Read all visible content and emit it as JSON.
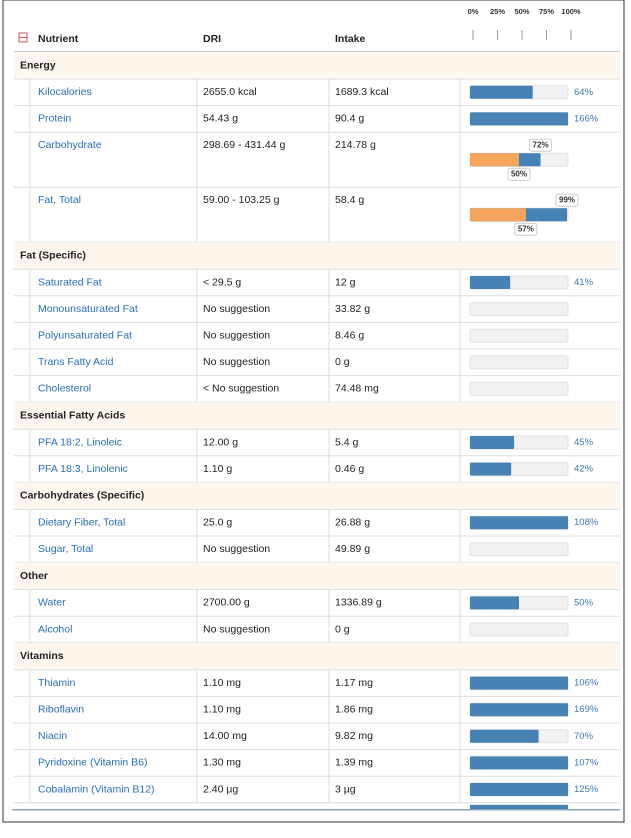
{
  "scale": [
    {
      "value": 0,
      "label": "0%"
    },
    {
      "value": 25,
      "label": "25%"
    },
    {
      "value": 50,
      "label": "50%"
    },
    {
      "value": 75,
      "label": "75%"
    },
    {
      "value": 100,
      "label": "100%"
    }
  ],
  "header": {
    "nutrient": "Nutrient",
    "dri": "DRI",
    "intake": "Intake"
  },
  "colors": [
    "#4682b4",
    "#f5a55c"
  ],
  "sections": [
    {
      "name": "Energy",
      "rows": [
        {
          "name": "Kilocalories",
          "dri": "2655.0 kcal",
          "intake": "1689.3 kcal",
          "bars": [
            {
              "value": 64,
              "label": "64%"
            }
          ]
        },
        {
          "name": "Protein",
          "dri": "54.43 g",
          "intake": "90.4 g",
          "bars": [
            {
              "value": 166,
              "label": "166%"
            }
          ]
        },
        {
          "name": "Carbohydrate",
          "dri": "298.69 - 431.44 g",
          "intake": "214.78 g",
          "bars": [
            {
              "value": 72,
              "label": "72%"
            },
            {
              "value": 50,
              "label": "50%"
            }
          ]
        },
        {
          "name": "Fat, Total",
          "dri": "59.00 - 103.25 g",
          "intake": "58.4 g",
          "bars": [
            {
              "value": 99,
              "label": "99%"
            },
            {
              "value": 57,
              "label": "57%"
            }
          ]
        }
      ]
    },
    {
      "name": "Fat (Specific)",
      "rows": [
        {
          "name": "Saturated Fat",
          "dri": "< 29.5 g",
          "intake": "12 g",
          "bars": [
            {
              "value": 41,
              "label": "41%"
            }
          ]
        },
        {
          "name": "Monounsaturated Fat",
          "dri": "No suggestion",
          "intake": "33.82 g",
          "bars": []
        },
        {
          "name": "Polyunsaturated Fat",
          "dri": "No suggestion",
          "intake": "8.46 g",
          "bars": []
        },
        {
          "name": "Trans Fatty Acid",
          "dri": "No suggestion",
          "intake": "0 g",
          "bars": []
        },
        {
          "name": "Cholesterol",
          "dri": "< No suggestion",
          "intake": "74.48 mg",
          "bars": []
        }
      ]
    },
    {
      "name": "Essential Fatty Acids",
      "rows": [
        {
          "name": "PFA 18:2, Linoleic",
          "dri": "12.00 g",
          "intake": "5.4 g",
          "bars": [
            {
              "value": 45,
              "label": "45%"
            }
          ]
        },
        {
          "name": "PFA 18:3, Linolenic",
          "dri": "1.10 g",
          "intake": "0.46 g",
          "bars": [
            {
              "value": 42,
              "label": "42%"
            }
          ]
        }
      ]
    },
    {
      "name": "Carbohydrates (Specific)",
      "rows": [
        {
          "name": "Dietary Fiber, Total",
          "dri": "25.0 g",
          "intake": "26.88 g",
          "bars": [
            {
              "value": 108,
              "label": "108%"
            }
          ]
        },
        {
          "name": "Sugar, Total",
          "dri": "No suggestion",
          "intake": "49.89 g",
          "bars": []
        }
      ]
    },
    {
      "name": "Other",
      "rows": [
        {
          "name": "Water",
          "dri": "2700.00 g",
          "intake": "1336.89 g",
          "bars": [
            {
              "value": 50,
              "label": "50%"
            }
          ]
        },
        {
          "name": "Alcohol",
          "dri": "No suggestion",
          "intake": "0 g",
          "bars": []
        }
      ]
    },
    {
      "name": "Vitamins",
      "rows": [
        {
          "name": "Thiamin",
          "dri": "1.10 mg",
          "intake": "1.17 mg",
          "bars": [
            {
              "value": 106,
              "label": "106%"
            }
          ]
        },
        {
          "name": "Riboflavin",
          "dri": "1.10 mg",
          "intake": "1.86 mg",
          "bars": [
            {
              "value": 169,
              "label": "169%"
            }
          ]
        },
        {
          "name": "Niacin",
          "dri": "14.00 mg",
          "intake": "9.82 mg",
          "bars": [
            {
              "value": 70,
              "label": "70%"
            }
          ]
        },
        {
          "name": "Pyridoxine (Vitamin B6)",
          "dri": "1.30 mg",
          "intake": "1.39 mg",
          "bars": [
            {
              "value": 107,
              "label": "107%"
            }
          ]
        },
        {
          "name": "Cobalamin (Vitamin B12)",
          "dri": "2.40 µg",
          "intake": "3 µg",
          "bars": [
            {
              "value": 125,
              "label": "125%"
            }
          ]
        }
      ]
    }
  ]
}
